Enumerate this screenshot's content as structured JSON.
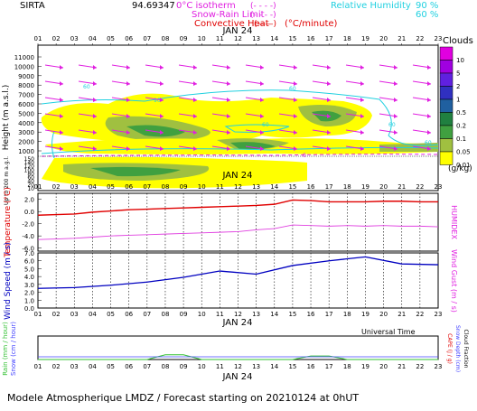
{
  "header": {
    "site": "SIRTA",
    "code": "94.69347",
    "legend": {
      "isotherm": "0°C isotherm",
      "snow_rain": "Snow-Rain Limit",
      "convective": "Convective Heat",
      "convective_unit": "(°C/minute)",
      "rh": "Relative Humidity",
      "rh90": "90 %",
      "rh60": "60 %",
      "dash_sample": "(- - - -)",
      "dash_sample2": "(- - - -)",
      "dash_sample3": "(——)"
    }
  },
  "hours": [
    "01",
    "02",
    "03",
    "04",
    "05",
    "06",
    "07",
    "08",
    "09",
    "10",
    "11",
    "12",
    "13",
    "14",
    "15",
    "16",
    "17",
    "18",
    "19",
    "20",
    "21",
    "22",
    "23"
  ],
  "date_label": "JAN 24",
  "upper_panel": {
    "ylabel": "Height  (m  a.s.l.)",
    "ylabel_low": "Up to 200 m a.g.l.",
    "yticks_main": [
      "11000",
      "10000",
      "9000",
      "8000",
      "7000",
      "6000",
      "5000",
      "4000",
      "3000",
      "2000",
      "1000"
    ],
    "yticks_low": [
      "150",
      "140",
      "120",
      "100",
      "80",
      "60",
      "40",
      "20",
      "10"
    ],
    "contour_labels": [
      "60",
      "90",
      "60",
      "60",
      "60",
      "60",
      "0"
    ],
    "colorbar": {
      "title": "Clouds",
      "unit": "(g/kg)",
      "levels": [
        "10",
        "5",
        "2",
        "1",
        "0.5",
        "0.2",
        "0.1",
        "0.05",
        "0.01"
      ],
      "colors": [
        "#e000e0",
        "#a000e0",
        "#6020e0",
        "#3030c0",
        "#2060a0",
        "#208040",
        "#40a040",
        "#a0c040",
        "#ffff00"
      ]
    }
  },
  "temp_panel": {
    "ylabel": "Temperature (°C)",
    "ylabel_right": "HUMIDEX",
    "yticks": [
      "2.0",
      "0.0",
      "-2.0",
      "-4.0",
      "-6.0"
    ],
    "ylim": [
      -6.5,
      3.0
    ]
  },
  "wind_panel": {
    "ylabel": "Wind Speed (m / s)",
    "ylabel_right": "Wind Gust (m / s)",
    "yticks": [
      "7.0",
      "6.0",
      "5.0",
      "4.0",
      "3.0",
      "2.0",
      "1.0",
      "0.0"
    ],
    "ylim": [
      0,
      7
    ]
  },
  "precip_panel": {
    "ylabel_rain": "Rain (mm / hour)",
    "ylabel_snow": "Snow (cm / hour)",
    "ylabel_right1": "CAPE (J / g)",
    "ylabel_right2": "Snow Depth (cm)",
    "ylabel_right3": "Cloud Fraction",
    "xlabel": "Universal Time"
  },
  "footer": "Modele Atmospherique LMDZ / Forecast starting on 20210124 at 0hUT",
  "chart_data": [
    {
      "type": "line",
      "name": "temperature",
      "x": [
        1,
        2,
        3,
        4,
        5,
        6,
        7,
        8,
        9,
        10,
        11,
        12,
        13,
        14,
        15,
        16,
        17,
        18,
        19,
        20,
        21,
        22,
        23
      ],
      "series": [
        {
          "values": [
            -0.6,
            -0.5,
            -0.4,
            -0.1,
            0.1,
            0.3,
            0.4,
            0.5,
            0.6,
            0.7,
            0.8,
            0.9,
            1.0,
            1.2,
            1.9,
            1.8,
            1.6,
            1.6,
            1.6,
            1.7,
            1.7,
            1.6,
            1.6
          ],
          "color": "#e00000"
        },
        {
          "values": [
            -4.6,
            -4.5,
            -4.4,
            -4.2,
            -4.0,
            -3.9,
            -3.8,
            -3.7,
            -3.6,
            -3.5,
            -3.4,
            -3.3,
            -3.0,
            -2.8,
            -2.2,
            -2.3,
            -2.4,
            -2.3,
            -2.4,
            -2.3,
            -2.4,
            -2.4,
            -2.5
          ],
          "color": "#e040e0"
        }
      ],
      "ylim": [
        -6.5,
        3.0
      ]
    },
    {
      "type": "line",
      "name": "wind",
      "x": [
        1,
        3,
        5,
        7,
        9,
        11,
        13,
        15,
        17,
        19,
        21,
        23
      ],
      "series": [
        {
          "values": [
            2.5,
            2.6,
            2.9,
            3.3,
            3.9,
            4.7,
            4.3,
            5.4,
            6.0,
            6.5,
            5.6,
            5.5
          ],
          "color": "#0000c0"
        }
      ],
      "ylim": [
        0,
        7
      ]
    },
    {
      "type": "line",
      "name": "precipitation",
      "x": [
        1,
        2,
        3,
        4,
        5,
        6,
        7,
        8,
        9,
        10,
        11,
        12,
        13,
        14,
        15,
        16,
        17,
        18,
        19,
        20,
        21,
        22,
        23
      ],
      "series": [
        {
          "values": [
            0,
            0,
            0,
            0,
            0,
            0,
            0,
            0.2,
            0.2,
            0,
            0,
            0,
            0,
            0,
            0,
            0.15,
            0.15,
            0,
            0,
            0,
            0,
            0,
            0
          ],
          "color": "#30c030"
        }
      ],
      "ylim": [
        0,
        1
      ]
    }
  ]
}
